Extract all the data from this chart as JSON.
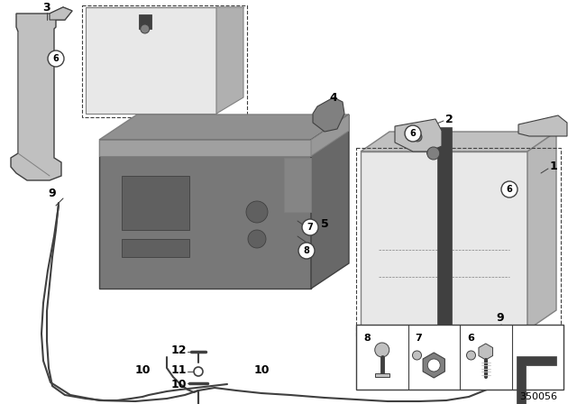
{
  "bg_color": "#ffffff",
  "dark": "#404040",
  "mid": "#808080",
  "light": "#c0c0c0",
  "vlight": "#e8e8e8",
  "diagram_number": "350056",
  "figsize": [
    6.4,
    4.48
  ],
  "dpi": 100
}
